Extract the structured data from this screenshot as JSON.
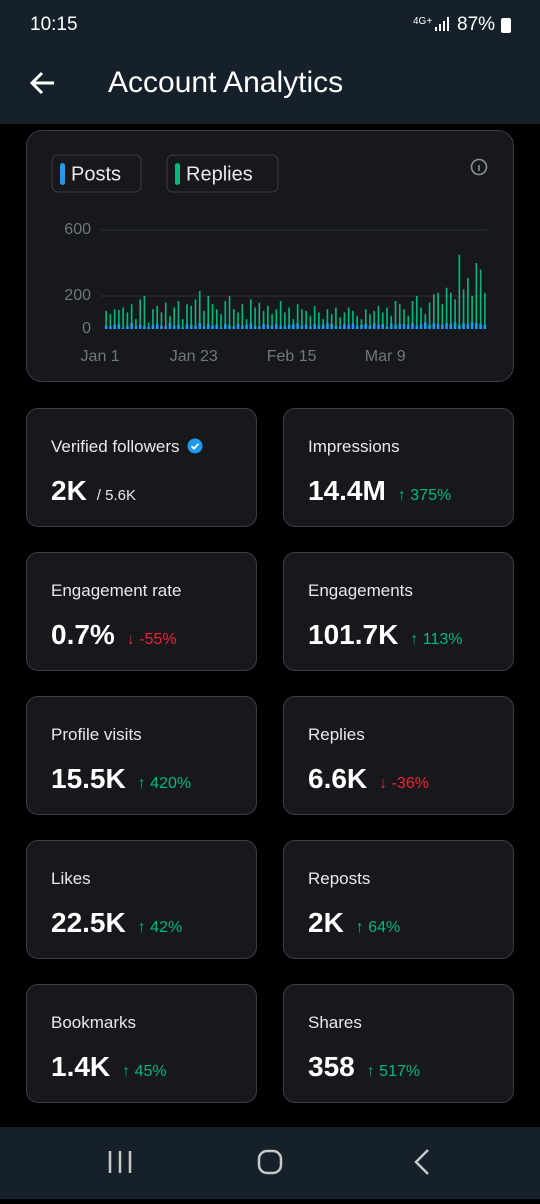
{
  "status_bar": {
    "time": "10:15",
    "network": "4G+",
    "battery": "87%"
  },
  "header": {
    "title": "Account Analytics"
  },
  "chart": {
    "type": "bar",
    "series": [
      {
        "name": "Posts",
        "color": "#1d9bf0",
        "values": [
          20,
          15,
          25,
          30,
          10,
          20,
          35,
          15,
          25,
          20,
          10,
          25,
          30,
          20,
          15,
          35,
          20,
          25,
          10,
          30,
          25,
          20,
          35,
          15,
          30,
          20,
          25,
          10,
          30,
          20,
          15,
          30,
          20,
          25,
          35,
          20,
          15,
          30,
          25,
          20,
          30,
          20,
          15,
          25,
          30,
          35,
          20,
          25,
          15,
          30,
          20,
          25,
          35,
          30,
          20,
          15,
          30,
          25,
          35,
          20,
          25,
          30,
          20,
          35,
          25,
          30,
          15,
          35,
          25,
          30,
          30,
          25,
          35,
          20,
          30,
          40,
          25,
          35,
          30,
          25,
          35,
          30,
          40,
          25,
          35,
          30,
          40,
          35,
          30,
          25
        ]
      },
      {
        "name": "Replies",
        "color": "#00ba7c",
        "values": [
          110,
          90,
          120,
          115,
          130,
          100,
          150,
          60,
          180,
          200,
          40,
          120,
          140,
          100,
          160,
          80,
          130,
          170,
          60,
          150,
          140,
          180,
          230,
          110,
          200,
          150,
          120,
          90,
          170,
          200,
          120,
          100,
          150,
          60,
          180,
          130,
          160,
          110,
          140,
          90,
          120,
          170,
          100,
          130,
          60,
          150,
          120,
          110,
          80,
          140,
          100,
          60,
          120,
          90,
          130,
          70,
          100,
          130,
          110,
          80,
          60,
          120,
          90,
          110,
          140,
          100,
          130,
          80,
          170,
          150,
          120,
          80,
          170,
          200,
          130,
          90,
          160,
          210,
          220,
          150,
          250,
          220,
          180,
          450,
          240,
          310,
          200,
          400,
          360,
          220
        ]
      }
    ],
    "categories": [
      "Jan 1",
      null,
      null,
      null,
      null,
      null,
      null,
      null,
      null,
      null,
      null,
      null,
      null,
      null,
      null,
      null,
      null,
      null,
      null,
      null,
      null,
      null,
      "Jan 23",
      null,
      null,
      null,
      null,
      null,
      null,
      null,
      null,
      null,
      null,
      null,
      null,
      null,
      null,
      null,
      null,
      null,
      null,
      null,
      null,
      null,
      null,
      "Feb 15",
      null,
      null,
      null,
      null,
      null,
      null,
      null,
      null,
      null,
      null,
      null,
      null,
      null,
      null,
      null,
      null,
      null,
      null,
      null,
      null,
      null,
      "Mar 9",
      null,
      null,
      null,
      null,
      null,
      null,
      null,
      null,
      null,
      null,
      null,
      null,
      null,
      null,
      null,
      null,
      null,
      null,
      null,
      null,
      null,
      null
    ],
    "ylim": [
      0,
      600
    ],
    "yticks": [
      0,
      200,
      600
    ],
    "grid": true
  },
  "cards": [
    {
      "label": "Verified followers",
      "value": "2K",
      "sub": "/ 5.6K",
      "verified": true
    },
    {
      "label": "Impressions",
      "value": "14.4M",
      "change": "↑ 375%",
      "trend": "up"
    },
    {
      "label": "Engagement rate",
      "value": "0.7%",
      "change": "↓ -55%",
      "trend": "down"
    },
    {
      "label": "Engagements",
      "value": "101.7K",
      "change": "↑ 113%",
      "trend": "up"
    },
    {
      "label": "Profile visits",
      "value": "15.5K",
      "change": "↑ 420%",
      "trend": "up"
    },
    {
      "label": "Replies",
      "value": "6.6K",
      "change": "↓ -36%",
      "trend": "down"
    },
    {
      "label": "Likes",
      "value": "22.5K",
      "change": "↑ 42%",
      "trend": "up"
    },
    {
      "label": "Reposts",
      "value": "2K",
      "change": "↑ 64%",
      "trend": "up"
    },
    {
      "label": "Bookmarks",
      "value": "1.4K",
      "change": "↑ 45%",
      "trend": "up"
    },
    {
      "label": "Shares",
      "value": "358",
      "change": "↑ 517%",
      "trend": "up"
    }
  ]
}
